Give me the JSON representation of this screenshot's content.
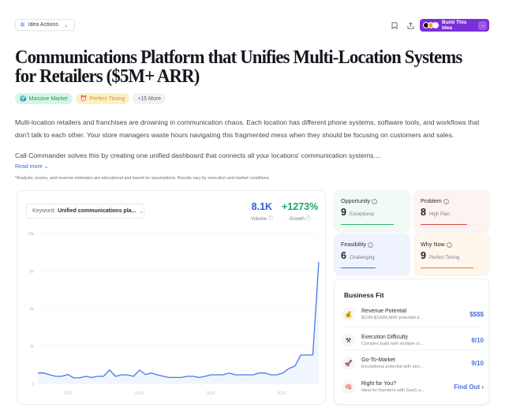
{
  "toolbar": {
    "idea_actions_label": "Idea Actions",
    "build_label": "Build This Idea",
    "bookmark_icon": "bookmark-icon",
    "share_icon": "share-icon",
    "arrow": "→"
  },
  "title": "Communications Platform that Unifies Multi-Location Systems for Retailers ($5M+ ARR)",
  "tags": [
    {
      "label": "Massive Market",
      "icon": "🌍"
    },
    {
      "label": "Perfect Timing",
      "icon": "⏰"
    },
    {
      "label": "+15 More"
    }
  ],
  "description": {
    "p1": "Multi-location retailers and franchises are drowning in communication chaos. Each location has different phone systems, software tools, and workflows that don't talk to each other. Your store managers waste hours navigating this fragmented mess when they should be focusing on customers and sales.",
    "p2": "Call Commander solves this by creating one unified dashboard that connects all your locations' communication systems....",
    "read_more": "Read more",
    "disclaimer": "*Analysis, scores, and revenue estimates are educational and based on assumptions. Results vary by execution and market conditions."
  },
  "trend": {
    "keyword_label": "Keyword:",
    "keyword_value": "Unified communications pla...",
    "volume": {
      "value": "8.1K",
      "label": "Volume",
      "color": "#2f5fd6"
    },
    "growth": {
      "value": "+1273%",
      "label": "Growth",
      "color": "#18a865"
    }
  },
  "chart_data": {
    "type": "area",
    "title": "",
    "xlabel": "",
    "ylabel": "",
    "y_ticks": [
      "10k",
      "8k",
      "5k",
      "3k",
      "0"
    ],
    "x_ticks": [
      "2022",
      "2023",
      "2024",
      "2025"
    ],
    "ylim": [
      0,
      10000
    ],
    "grid": true,
    "series": [
      {
        "name": "Search volume",
        "color": "#4a78e6",
        "values": [
          700,
          700,
          580,
          480,
          480,
          600,
          380,
          380,
          480,
          400,
          480,
          480,
          900,
          480,
          580,
          580,
          480,
          900,
          600,
          700,
          580,
          480,
          400,
          400,
          400,
          480,
          480,
          400,
          480,
          580,
          580,
          580,
          700,
          580,
          580,
          580,
          580,
          700,
          700,
          580,
          580,
          700,
          1000,
          1150,
          1900,
          1900,
          1900,
          8100
        ]
      }
    ]
  },
  "scores": [
    {
      "name": "Opportunity",
      "value": "9",
      "label": "Exceptional",
      "color": "#2cb574",
      "bg": "#effbf4",
      "pct": 90
    },
    {
      "name": "Problem",
      "value": "8",
      "label": "High Pain",
      "color": "#e0463f",
      "bg": "#fdf3f2",
      "pct": 80
    },
    {
      "name": "Feasibility",
      "value": "6",
      "label": "Challenging",
      "color": "#3e6fe0",
      "bg": "#eef3fd",
      "pct": 60
    },
    {
      "name": "Why Now",
      "value": "9",
      "label": "Perfect Timing",
      "color": "#ef7a22",
      "bg": "#fff6ec",
      "pct": 90
    }
  ],
  "business_fit": {
    "title": "Business Fit",
    "rows": [
      {
        "icon": "💰",
        "title": "Revenue Potential",
        "sub": "$10M-$100M ARR potential d...",
        "value": "$$$$"
      },
      {
        "icon": "⚒",
        "title": "Execution Difficulty",
        "sub": "Complex build with multiple in...",
        "value": "8/10"
      },
      {
        "icon": "🚀",
        "title": "Go-To-Market",
        "sub": "Exceptional potential with stro...",
        "value": "9/10"
      },
      {
        "icon": "🧠",
        "title": "Right for You?",
        "sub": "Ideal for founders with SaaS a...",
        "value": "Find Out ›"
      }
    ]
  }
}
